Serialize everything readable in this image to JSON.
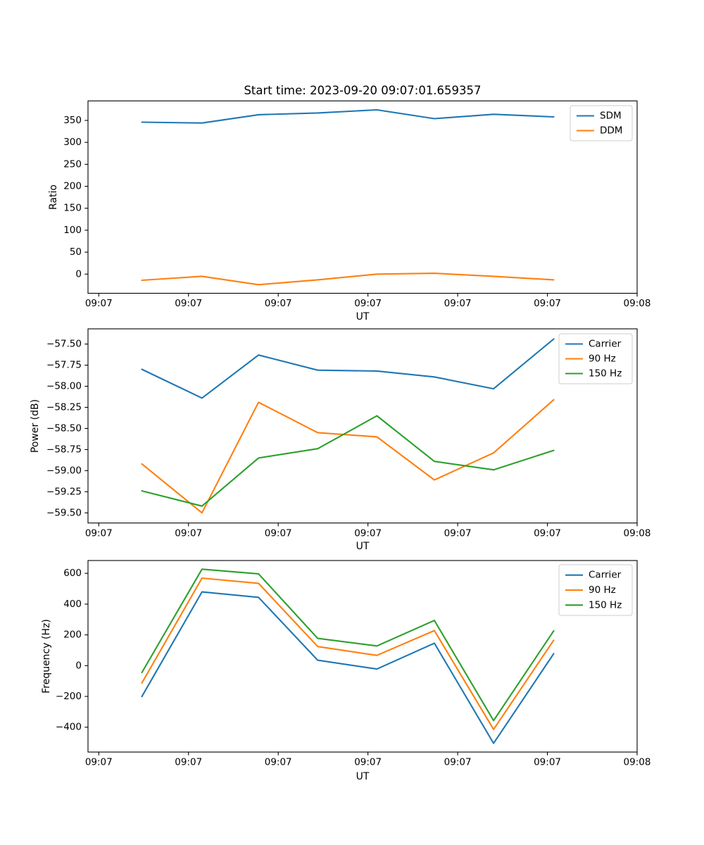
{
  "figure": {
    "background": "#ffffff",
    "spine_color": "#000000",
    "legend_edge_color": "#cccccc"
  },
  "palette": {
    "blue": "#1f77b4",
    "orange": "#ff7f0e",
    "green": "#2ca02c"
  },
  "chart_data": [
    {
      "type": "line",
      "title": "Start time: 2023-09-20 09:07:01.659357",
      "xlabel": "UT",
      "ylabel": "Ratio",
      "grid": false,
      "legend_location": "upper right",
      "x_axis": {
        "unit": "seconds after 09:07:00 UT",
        "xlim": [
          -1.2,
          60
        ],
        "tick_values": [
          0,
          10,
          20,
          30,
          40,
          50,
          60
        ],
        "tick_labels": [
          "09:07",
          "09:07",
          "09:07",
          "09:07",
          "09:07",
          "09:07",
          "09:08"
        ]
      },
      "y_axis": {
        "ylim": [
          -43.6,
          394.4
        ],
        "tick_values": [
          0,
          50,
          100,
          150,
          200,
          250,
          300,
          350
        ],
        "tick_labels": [
          "0",
          "50",
          "100",
          "150",
          "200",
          "250",
          "300",
          "350"
        ]
      },
      "x": [
        4.8,
        11.5,
        17.8,
        24.4,
        31.0,
        37.4,
        44.0,
        50.7
      ],
      "series": [
        {
          "name": "SDM",
          "color": "#1f77b4",
          "values": [
            346,
            344,
            363,
            367,
            374,
            354,
            364,
            358
          ]
        },
        {
          "name": "DDM",
          "color": "#ff7f0e",
          "values": [
            -14,
            -5,
            -24,
            -13,
            0,
            2,
            -5,
            -13
          ]
        }
      ]
    },
    {
      "type": "line",
      "title": "",
      "xlabel": "UT",
      "ylabel": "Power (dB)",
      "grid": false,
      "legend_location": "upper right",
      "x_axis": {
        "unit": "seconds after 09:07:00 UT",
        "xlim": [
          -1.2,
          60
        ],
        "tick_values": [
          0,
          10,
          20,
          30,
          40,
          50,
          60
        ],
        "tick_labels": [
          "09:07",
          "09:07",
          "09:07",
          "09:07",
          "09:07",
          "09:07",
          "09:08"
        ]
      },
      "y_axis": {
        "ylim": [
          -59.62,
          -57.32
        ],
        "tick_values": [
          -57.5,
          -57.75,
          -58.0,
          -58.25,
          -58.5,
          -58.75,
          -59.0,
          -59.25,
          -59.5
        ],
        "tick_labels": [
          "−57.50",
          "−57.75",
          "−58.00",
          "−58.25",
          "−58.50",
          "−58.75",
          "−59.00",
          "−59.25",
          "−59.50"
        ]
      },
      "x": [
        4.8,
        11.5,
        17.8,
        24.4,
        31.0,
        37.4,
        44.0,
        50.7
      ],
      "series": [
        {
          "name": "Carrier",
          "color": "#1f77b4",
          "values": [
            -57.8,
            -58.14,
            -57.63,
            -57.81,
            -57.82,
            -57.89,
            -58.03,
            -57.44
          ]
        },
        {
          "name": "90 Hz",
          "color": "#ff7f0e",
          "values": [
            -58.92,
            -59.5,
            -58.19,
            -58.55,
            -58.6,
            -59.11,
            -58.79,
            -58.16
          ]
        },
        {
          "name": "150 Hz",
          "color": "#2ca02c",
          "values": [
            -59.24,
            -59.42,
            -58.85,
            -58.74,
            -58.35,
            -58.89,
            -58.99,
            -58.76
          ]
        }
      ]
    },
    {
      "type": "line",
      "title": "",
      "xlabel": "UT",
      "ylabel": "Frequency (Hz)",
      "grid": false,
      "legend_location": "upper right",
      "x_axis": {
        "unit": "seconds after 09:07:00 UT",
        "xlim": [
          -1.2,
          60
        ],
        "tick_values": [
          0,
          10,
          20,
          30,
          40,
          50,
          60
        ],
        "tick_labels": [
          "09:07",
          "09:07",
          "09:07",
          "09:07",
          "09:07",
          "09:07",
          "09:08"
        ]
      },
      "y_axis": {
        "ylim": [
          -561.6,
          683.3
        ],
        "tick_values": [
          600,
          400,
          200,
          0,
          -200,
          -400
        ],
        "tick_labels": [
          "600",
          "400",
          "200",
          "0",
          "−200",
          "−400"
        ]
      },
      "x": [
        4.8,
        11.5,
        17.8,
        24.4,
        31.0,
        37.4,
        44.0,
        50.7
      ],
      "series": [
        {
          "name": "Carrier",
          "color": "#1f77b4",
          "values": [
            -201,
            479,
            444,
            35,
            -22,
            146,
            -505,
            78
          ]
        },
        {
          "name": "90 Hz",
          "color": "#ff7f0e",
          "values": [
            -113,
            569,
            535,
            124,
            67,
            228,
            -414,
            165
          ]
        },
        {
          "name": "150 Hz",
          "color": "#2ca02c",
          "values": [
            -45,
            627,
            597,
            177,
            128,
            294,
            -357,
            226
          ]
        }
      ]
    }
  ]
}
